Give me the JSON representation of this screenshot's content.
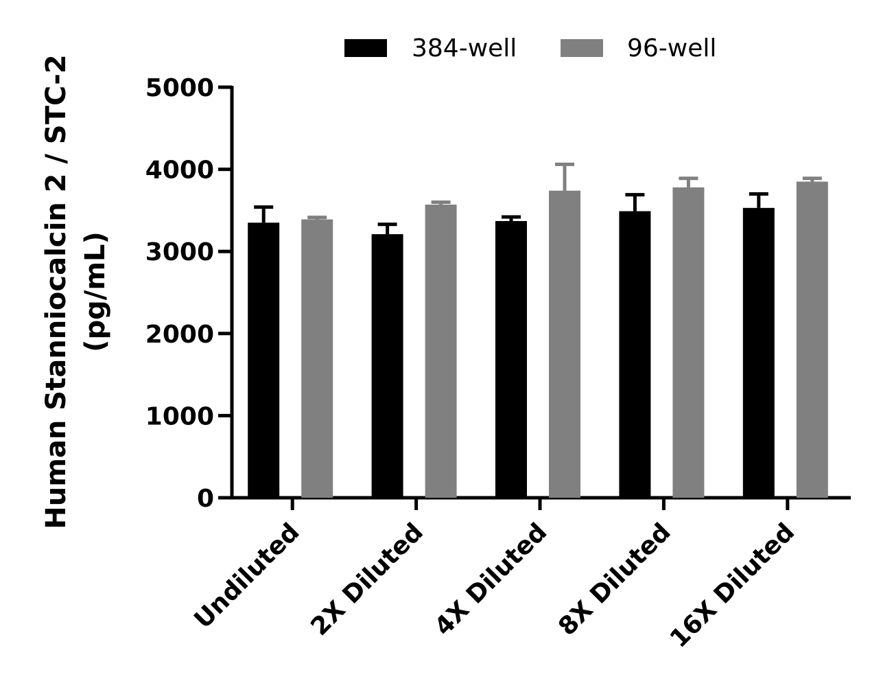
{
  "chart_data": {
    "type": "bar",
    "title": "",
    "xlabel": "",
    "ylabel_lines": [
      "Human Stanniocalcin 2 / STC-2",
      "(pg/mL)"
    ],
    "categories": [
      "Undiluted",
      "2X Diluted",
      "4X Diluted",
      "8X Diluted",
      "16X Diluted"
    ],
    "yticks": [
      0,
      1000,
      2000,
      3000,
      4000,
      5000
    ],
    "ylim": [
      0,
      5000
    ],
    "grid": false,
    "legend_position": "top",
    "series": [
      {
        "name": "384-well",
        "color": "#000000",
        "values": [
          3350,
          3210,
          3370,
          3490,
          3530
        ],
        "error": [
          190,
          120,
          50,
          200,
          170
        ]
      },
      {
        "name": "96-well",
        "color": "#808080",
        "values": [
          3390,
          3570,
          3740,
          3780,
          3850
        ],
        "error": [
          25,
          30,
          320,
          110,
          40
        ]
      }
    ]
  }
}
